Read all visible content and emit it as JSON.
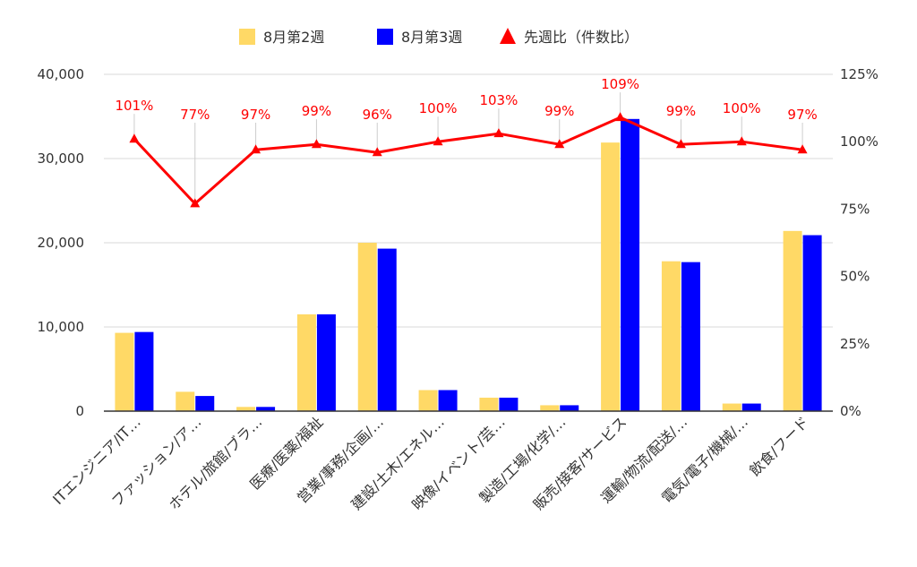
{
  "chart_data": {
    "type": "bar",
    "categories": [
      "ITエンジニア/IT…",
      "ファッション/ア…",
      "ホテル/旅館/ブラ…",
      "医療/医薬/福祉",
      "営業/事務/企画/…",
      "建設/土木/エネル…",
      "映像/イベント/芸…",
      "製造/工場/化学/…",
      "販売/接客/サービス",
      "運輸/物流/配送/…",
      "電気/電子/機械/…",
      "飲食/フード"
    ],
    "series": [
      {
        "name": "8月第2週",
        "type": "bar",
        "axis": "left",
        "color": "#ffd966",
        "values": [
          9300,
          2300,
          500,
          11500,
          20000,
          2500,
          1600,
          700,
          31900,
          17800,
          900,
          21400
        ]
      },
      {
        "name": "8月第3週",
        "type": "bar",
        "axis": "left",
        "color": "#0000ff",
        "values": [
          9400,
          1800,
          500,
          11500,
          19300,
          2500,
          1600,
          700,
          34700,
          17700,
          900,
          20900
        ]
      },
      {
        "name": "先週比（件数比）",
        "type": "line",
        "axis": "right",
        "color": "#ff0000",
        "values": [
          101,
          77,
          97,
          99,
          96,
          100,
          103,
          99,
          109,
          99,
          100,
          97
        ]
      }
    ],
    "point_labels": [
      "101%",
      "77%",
      "97%",
      "99%",
      "96%",
      "100%",
      "103%",
      "99%",
      "109%",
      "99%",
      "100%",
      "97%"
    ],
    "y_left": {
      "min": 0,
      "max": 40000,
      "ticks": [
        "0",
        "10,000",
        "20,000",
        "30,000",
        "40,000"
      ]
    },
    "y_right": {
      "min": 0,
      "max": 125,
      "ticks": [
        "0%",
        "25%",
        "50%",
        "75%",
        "100%",
        "125%"
      ]
    },
    "grid": true,
    "legend_position": "top"
  }
}
